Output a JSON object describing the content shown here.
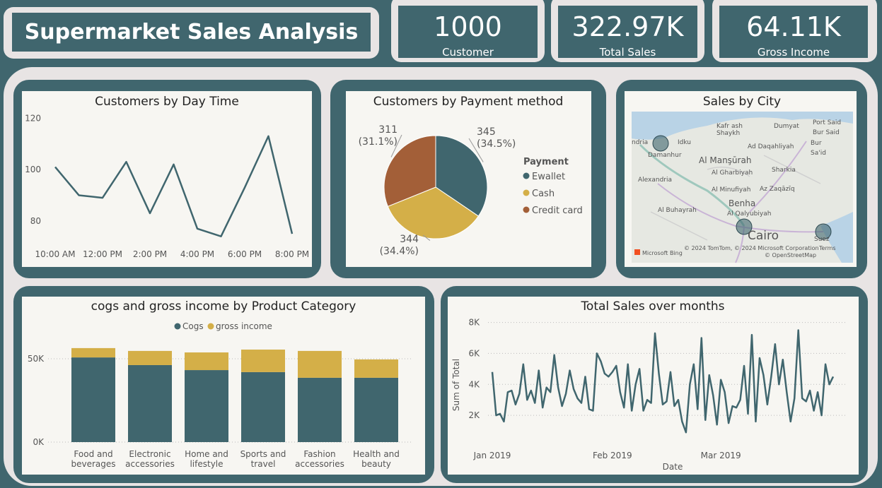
{
  "header": {
    "title": "Supermarket Sales Analysis"
  },
  "kpis": [
    {
      "value": "1000",
      "label": "Customer"
    },
    {
      "value": "322.97K",
      "label": "Total Sales"
    },
    {
      "value": "64.11K",
      "label": "Gross Income"
    }
  ],
  "chart_data": [
    {
      "type": "line",
      "title": "Customers by Day Time",
      "color": "#40666e",
      "categories": [
        "10:00 AM",
        null,
        "12:00 PM",
        null,
        "2:00 PM",
        null,
        "4:00 PM",
        null,
        "6:00 PM",
        null,
        "8:00 PM"
      ],
      "values": [
        101,
        90,
        89,
        103,
        83,
        102,
        77,
        74,
        93,
        113,
        75
      ],
      "ylim": [
        72,
        122
      ],
      "yticks": [
        80,
        100,
        120
      ],
      "grid": false
    },
    {
      "type": "pie",
      "title": "Customers by Payment method",
      "legend_title": "Payment",
      "categories": [
        "Ewallet",
        "Cash",
        "Credit card"
      ],
      "values": [
        345,
        344,
        311
      ],
      "percent_labels": [
        "(34.5%)",
        "(34.4%)",
        "(31.1%)"
      ],
      "colors": [
        "#40666e",
        "#d4af48",
        "#a35f38"
      ]
    },
    {
      "type": "map",
      "title": "Sales by City",
      "place_labels": [
        "ndria",
        "Idku",
        "Kafr ash",
        "Shaykh",
        "Dumyat",
        "Port Said",
        "Bur Said",
        "Damanhur",
        "Ad Daqahliyah",
        "Bur",
        "Sa'id",
        "Al Manşūrah",
        "Al Gharbiyah",
        "Sharkia",
        "Alexandria",
        "Al Minufiyah",
        "Az Zaqāzīq",
        "Benha",
        "Al Buhayrah",
        "Al Qalyubiyah",
        "Cairo",
        "Suez"
      ],
      "attribution": [
        "Microsoft Bing",
        "© 2024 TomTom, © 2024 Microsoft Corporation",
        "Terms",
        "© OpenStreetMap"
      ]
    },
    {
      "type": "stacked_bar",
      "title": "cogs and gross income by Product Category",
      "categories": [
        "Food and beverages",
        "Electronic accessories",
        "Home and lifestyle",
        "Sports and travel",
        "Fashion accessories",
        "Health and beauty"
      ],
      "series": [
        {
          "name": "Cogs",
          "color": "#40666e",
          "values": [
            50800,
            46200,
            43200,
            42000,
            38600,
            38600
          ]
        },
        {
          "name": "gross income",
          "color": "#d4af48",
          "values": [
            5600,
            8500,
            10600,
            13500,
            16100,
            11000
          ]
        }
      ],
      "ylim": [
        0,
        75000
      ],
      "yticks": [
        {
          "value": 0,
          "label": "0K"
        },
        {
          "value": 50000,
          "label": "50K"
        }
      ],
      "grid": true
    },
    {
      "type": "line",
      "title": "Total Sales over months",
      "color": "#40666e",
      "x_label": "Date",
      "y_label": "Sum of Total",
      "categories": [
        "Jan 2019",
        null,
        null,
        null,
        null,
        null,
        null,
        null,
        null,
        null,
        null,
        null,
        null,
        null,
        null,
        null,
        null,
        null,
        null,
        null,
        null,
        null,
        null,
        null,
        null,
        null,
        null,
        null,
        null,
        null,
        null,
        "Feb 2019",
        null,
        null,
        null,
        null,
        null,
        null,
        null,
        null,
        null,
        null,
        null,
        null,
        null,
        null,
        null,
        null,
        null,
        null,
        null,
        null,
        null,
        null,
        null,
        null,
        null,
        null,
        null,
        "Mar 2019",
        null,
        null,
        null,
        null,
        null,
        null,
        null,
        null,
        null,
        null,
        null,
        null,
        null,
        null,
        null,
        null,
        null,
        null,
        null,
        null,
        null,
        null,
        null,
        null,
        null,
        null,
        null,
        null,
        null
      ],
      "values": [
        4800,
        2000,
        2100,
        1600,
        3500,
        3600,
        2700,
        3400,
        5300,
        3000,
        3600,
        2800,
        4900,
        2500,
        3800,
        3500,
        5900,
        3800,
        2600,
        3400,
        4900,
        3700,
        3100,
        2800,
        4500,
        2400,
        2300,
        6000,
        5500,
        4700,
        4500,
        4800,
        5200,
        3500,
        2500,
        5300,
        2300,
        4000,
        5000,
        2300,
        3000,
        2800,
        7300,
        4700,
        2700,
        2900,
        4800,
        2600,
        3000,
        1600,
        900,
        4000,
        5300,
        2400,
        7000,
        1700,
        4600,
        3300,
        1400,
        4300,
        3500,
        1500,
        2600,
        2500,
        3000,
        5200,
        2100,
        7200,
        1600,
        5700,
        4600,
        2700,
        4500,
        6600,
        4000,
        5600,
        3500,
        1600,
        3100,
        7500,
        3100,
        2900,
        3600,
        2300,
        3500,
        2000,
        5300,
        4000,
        4500
      ],
      "ylim": [
        0,
        8300
      ],
      "yticks": [
        {
          "value": 2000,
          "label": "2K"
        },
        {
          "value": 4000,
          "label": "4K"
        },
        {
          "value": 6000,
          "label": "6K"
        },
        {
          "value": 8000,
          "label": "8K"
        }
      ],
      "grid": true
    }
  ]
}
